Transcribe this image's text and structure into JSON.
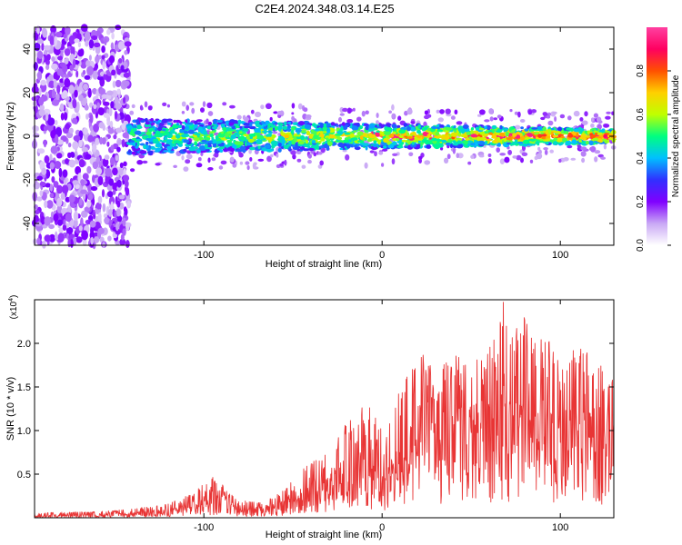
{
  "figure": {
    "title": "C2E4.2024.348.03.14.E25"
  },
  "chart_data": [
    {
      "type": "heatmap",
      "title": "C2E4.2024.348.03.14.E25",
      "xlabel": "Height of straight line (km)",
      "ylabel": "Frequency (Hz)",
      "xlim": [
        -195,
        130
      ],
      "ylim": [
        -50,
        50
      ],
      "xticks": [
        -100,
        0,
        100
      ],
      "yticks": [
        -40,
        -20,
        0,
        20,
        40
      ],
      "colorbar": {
        "label": "Normalized spectral amplitude",
        "range": [
          0,
          1
        ],
        "ticks": [
          0.0,
          0.2,
          0.4,
          0.6,
          0.8
        ],
        "tick_labels": [
          "0.0",
          "0.2",
          "0.4",
          "0.6",
          "0.8"
        ],
        "colors": [
          "#ffffff",
          "#c9a8f5",
          "#8000ff",
          "#3030ff",
          "#00c0ff",
          "#00ff80",
          "#c0ff00",
          "#ffd000",
          "#ff5000",
          "#ff0060",
          "#ff40a0"
        ]
      },
      "features": [
        {
          "name": "broadband noise region",
          "x_range": [
            -195,
            -142
          ],
          "freq_range": [
            -50,
            50
          ],
          "amplitude": 0.18
        },
        {
          "name": "narrow band near 0 Hz",
          "x_range": [
            -142,
            130
          ],
          "center_freq": 0,
          "half_width_hz": [
            8,
            3
          ],
          "peak_amplitude": 0.95
        }
      ]
    },
    {
      "type": "line",
      "xlabel": "Height of straight line (km)",
      "ylabel": "SNR (10 * v/v)",
      "yscale_label": "(x10",
      "yscale_exp": "4",
      "xlim": [
        -195,
        130
      ],
      "ylim": [
        0,
        25000
      ],
      "xticks": [
        -100,
        0,
        100
      ],
      "yticks": [
        5000,
        10000,
        15000,
        20000
      ],
      "ytick_labels": [
        "0.5",
        "1.0",
        "1.5",
        "2.0"
      ],
      "series": [
        {
          "name": "SNR",
          "color": "#e83535",
          "x": [
            -195,
            -160,
            -140,
            -120,
            -105,
            -95,
            -88,
            -80,
            -70,
            -60,
            -50,
            -40,
            -30,
            -25,
            -20,
            -15,
            -10,
            -5,
            0,
            5,
            10,
            15,
            20,
            23,
            25,
            28,
            30,
            35,
            40,
            45,
            50,
            55,
            60,
            65,
            68,
            70,
            75,
            80,
            85,
            90,
            95,
            100,
            105,
            110,
            115,
            120,
            122,
            125,
            128,
            130
          ],
          "y_mean": [
            200,
            300,
            500,
            800,
            1500,
            2000,
            2500,
            1000,
            900,
            1200,
            2500,
            3500,
            4000,
            6000,
            5000,
            6500,
            7000,
            6000,
            5000,
            6000,
            8000,
            9000,
            10000,
            15000,
            17000,
            13000,
            8000,
            11000,
            10000,
            12000,
            11000,
            12000,
            11500,
            13000,
            14000,
            12000,
            11000,
            13000,
            10000,
            12000,
            11000,
            10000,
            11500,
            12000,
            10500,
            11000,
            12000,
            8000,
            9000,
            10000
          ],
          "y_peak": [
            600,
            700,
            1000,
            1600,
            3000,
            4800,
            3500,
            2000,
            1800,
            2500,
            4500,
            6500,
            7500,
            9000,
            11500,
            11000,
            13500,
            12000,
            10500,
            12500,
            15500,
            16500,
            18000,
            19000,
            19500,
            18000,
            13000,
            18000,
            19000,
            18500,
            20000,
            18500,
            20500,
            22000,
            25000,
            22500,
            22000,
            23000,
            20500,
            21000,
            20000,
            19000,
            19500,
            20500,
            19000,
            18500,
            21500,
            13500,
            16000,
            17500
          ]
        }
      ]
    }
  ]
}
